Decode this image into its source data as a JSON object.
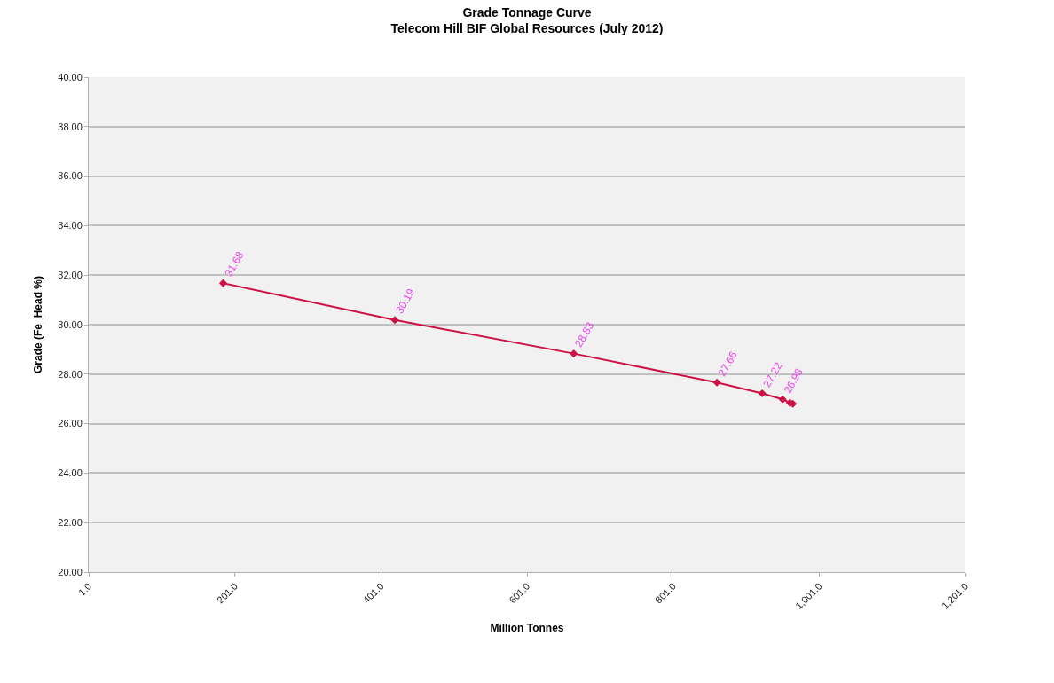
{
  "chart_data": {
    "type": "line",
    "title": "Grade Tonnage Curve",
    "subtitle": "Telecom Hill BIF Global Resources (July 2012)",
    "xlabel": "Million Tonnes",
    "ylabel": "Grade (Fe_Head %)",
    "x": [
      185,
      420,
      665,
      861,
      923,
      951,
      956,
      958,
      961,
      965
    ],
    "series": [
      {
        "color": "#cc1144",
        "values": [
          31.68,
          30.19,
          28.83,
          27.66,
          27.22,
          26.98,
          null,
          null,
          26.84,
          26.8
        ],
        "value_labels": [
          "31.68",
          "30.19",
          "28.83",
          "27.66",
          "27.22",
          "26.98",
          null,
          null,
          null,
          null
        ]
      }
    ],
    "xlim": [
      1,
      1201
    ],
    "xticks": [
      {
        "value": 1,
        "label": "1.0"
      },
      {
        "value": 201,
        "label": "201.0"
      },
      {
        "value": 401,
        "label": "401.0"
      },
      {
        "value": 601,
        "label": "601.0"
      },
      {
        "value": 801,
        "label": "801.0"
      },
      {
        "value": 1001,
        "label": "1,001.0"
      },
      {
        "value": 1201,
        "label": "1,201.0"
      }
    ],
    "ylim": [
      20,
      40
    ],
    "yticks": [
      {
        "value": 20,
        "label": "20.00"
      },
      {
        "value": 22,
        "label": "22.00"
      },
      {
        "value": 24,
        "label": "24.00"
      },
      {
        "value": 26,
        "label": "26.00"
      },
      {
        "value": 28,
        "label": "28.00"
      },
      {
        "value": 30,
        "label": "30.00"
      },
      {
        "value": 32,
        "label": "32.00"
      },
      {
        "value": 34,
        "label": "34.00"
      },
      {
        "value": 36,
        "label": "36.00"
      },
      {
        "value": 38,
        "label": "38.00"
      },
      {
        "value": 40,
        "label": "40.00"
      }
    ],
    "grid": "y",
    "marker": "diamond",
    "line_style": "solid"
  }
}
